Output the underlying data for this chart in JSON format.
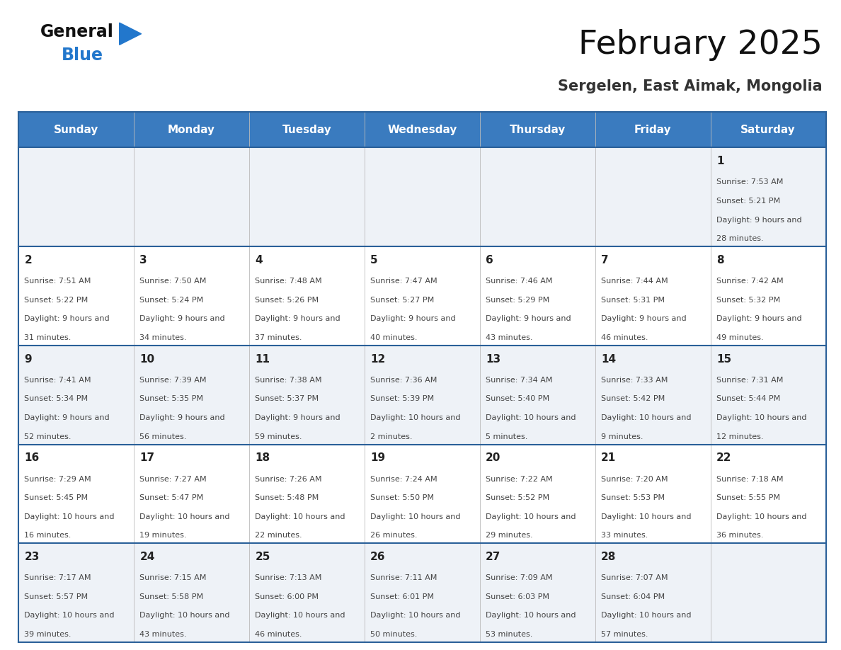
{
  "title": "February 2025",
  "subtitle": "Sergelen, East Aimak, Mongolia",
  "days_of_week": [
    "Sunday",
    "Monday",
    "Tuesday",
    "Wednesday",
    "Thursday",
    "Friday",
    "Saturday"
  ],
  "header_bg": "#3a7bbf",
  "header_text": "#ffffff",
  "row_bg_light": "#eef2f7",
  "row_bg_white": "#ffffff",
  "border_color": "#2a6099",
  "day_num_color": "#222222",
  "info_color": "#444444",
  "logo_black": "#111111",
  "logo_blue": "#2277cc",
  "tri_color": "#2277cc",
  "calendar_data": [
    [
      null,
      null,
      null,
      null,
      null,
      null,
      {
        "day": 1,
        "sunrise": "7:53 AM",
        "sunset": "5:21 PM",
        "daylight": "9 hours and 28 minutes"
      }
    ],
    [
      {
        "day": 2,
        "sunrise": "7:51 AM",
        "sunset": "5:22 PM",
        "daylight": "9 hours and 31 minutes"
      },
      {
        "day": 3,
        "sunrise": "7:50 AM",
        "sunset": "5:24 PM",
        "daylight": "9 hours and 34 minutes"
      },
      {
        "day": 4,
        "sunrise": "7:48 AM",
        "sunset": "5:26 PM",
        "daylight": "9 hours and 37 minutes"
      },
      {
        "day": 5,
        "sunrise": "7:47 AM",
        "sunset": "5:27 PM",
        "daylight": "9 hours and 40 minutes"
      },
      {
        "day": 6,
        "sunrise": "7:46 AM",
        "sunset": "5:29 PM",
        "daylight": "9 hours and 43 minutes"
      },
      {
        "day": 7,
        "sunrise": "7:44 AM",
        "sunset": "5:31 PM",
        "daylight": "9 hours and 46 minutes"
      },
      {
        "day": 8,
        "sunrise": "7:42 AM",
        "sunset": "5:32 PM",
        "daylight": "9 hours and 49 minutes"
      }
    ],
    [
      {
        "day": 9,
        "sunrise": "7:41 AM",
        "sunset": "5:34 PM",
        "daylight": "9 hours and 52 minutes"
      },
      {
        "day": 10,
        "sunrise": "7:39 AM",
        "sunset": "5:35 PM",
        "daylight": "9 hours and 56 minutes"
      },
      {
        "day": 11,
        "sunrise": "7:38 AM",
        "sunset": "5:37 PM",
        "daylight": "9 hours and 59 minutes"
      },
      {
        "day": 12,
        "sunrise": "7:36 AM",
        "sunset": "5:39 PM",
        "daylight": "10 hours and 2 minutes"
      },
      {
        "day": 13,
        "sunrise": "7:34 AM",
        "sunset": "5:40 PM",
        "daylight": "10 hours and 5 minutes"
      },
      {
        "day": 14,
        "sunrise": "7:33 AM",
        "sunset": "5:42 PM",
        "daylight": "10 hours and 9 minutes"
      },
      {
        "day": 15,
        "sunrise": "7:31 AM",
        "sunset": "5:44 PM",
        "daylight": "10 hours and 12 minutes"
      }
    ],
    [
      {
        "day": 16,
        "sunrise": "7:29 AM",
        "sunset": "5:45 PM",
        "daylight": "10 hours and 16 minutes"
      },
      {
        "day": 17,
        "sunrise": "7:27 AM",
        "sunset": "5:47 PM",
        "daylight": "10 hours and 19 minutes"
      },
      {
        "day": 18,
        "sunrise": "7:26 AM",
        "sunset": "5:48 PM",
        "daylight": "10 hours and 22 minutes"
      },
      {
        "day": 19,
        "sunrise": "7:24 AM",
        "sunset": "5:50 PM",
        "daylight": "10 hours and 26 minutes"
      },
      {
        "day": 20,
        "sunrise": "7:22 AM",
        "sunset": "5:52 PM",
        "daylight": "10 hours and 29 minutes"
      },
      {
        "day": 21,
        "sunrise": "7:20 AM",
        "sunset": "5:53 PM",
        "daylight": "10 hours and 33 minutes"
      },
      {
        "day": 22,
        "sunrise": "7:18 AM",
        "sunset": "5:55 PM",
        "daylight": "10 hours and 36 minutes"
      }
    ],
    [
      {
        "day": 23,
        "sunrise": "7:17 AM",
        "sunset": "5:57 PM",
        "daylight": "10 hours and 39 minutes"
      },
      {
        "day": 24,
        "sunrise": "7:15 AM",
        "sunset": "5:58 PM",
        "daylight": "10 hours and 43 minutes"
      },
      {
        "day": 25,
        "sunrise": "7:13 AM",
        "sunset": "6:00 PM",
        "daylight": "10 hours and 46 minutes"
      },
      {
        "day": 26,
        "sunrise": "7:11 AM",
        "sunset": "6:01 PM",
        "daylight": "10 hours and 50 minutes"
      },
      {
        "day": 27,
        "sunrise": "7:09 AM",
        "sunset": "6:03 PM",
        "daylight": "10 hours and 53 minutes"
      },
      {
        "day": 28,
        "sunrise": "7:07 AM",
        "sunset": "6:04 PM",
        "daylight": "10 hours and 57 minutes"
      },
      null
    ]
  ]
}
